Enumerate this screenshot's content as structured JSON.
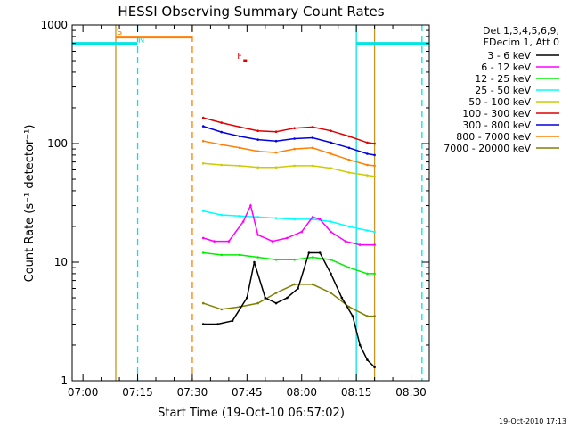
{
  "chart_data": {
    "type": "line",
    "title": "HESSI Observing Summary Count Rates",
    "xlabel": "Start Time (19-Oct-10 06:57:02)",
    "ylabel": "Count Rate (s⁻¹ detector⁻¹)",
    "y_scale": "log",
    "ylim": [
      1,
      1000
    ],
    "xlim": [
      "06:57:02",
      "08:35:00"
    ],
    "x_ticks": [
      "07:00",
      "07:15",
      "07:30",
      "07:45",
      "08:00",
      "08:15",
      "08:30"
    ],
    "y_ticks": [
      "1",
      "10",
      "100",
      "1000"
    ],
    "legend_header": [
      "Det 1,3,4,5,6,9,",
      "FDecim 1, Att 0"
    ],
    "legend_position": "right",
    "footer_timestamp": "19-Oct-2010 17:13",
    "colors": {
      "orbit_line": "#00e5e5",
      "saa_line": "#c8961e",
      "flag_line": "#ff7f00",
      "flare_flag": "#e00000"
    },
    "series": [
      {
        "name": "3 - 6 keV",
        "color": "#000000",
        "x": [
          "07:33",
          "07:37",
          "07:41",
          "07:45",
          "07:47",
          "07:50",
          "07:53",
          "07:56",
          "07:59",
          "08:02",
          "08:05",
          "08:08",
          "08:11",
          "08:14",
          "08:16",
          "08:18",
          "08:20"
        ],
        "y": [
          3,
          3,
          3.2,
          5,
          10,
          5,
          4.5,
          5,
          6,
          12,
          12,
          8,
          5,
          3.5,
          2,
          1.5,
          1.3
        ]
      },
      {
        "name": "6 - 12 keV",
        "color": "#ff00ff",
        "x": [
          "07:33",
          "07:36",
          "07:40",
          "07:44",
          "07:46",
          "07:48",
          "07:52",
          "07:56",
          "08:00",
          "08:03",
          "08:05",
          "08:08",
          "08:12",
          "08:16",
          "08:20"
        ],
        "y": [
          16,
          15,
          15,
          22,
          30,
          17,
          15,
          16,
          18,
          24,
          23,
          18,
          15,
          14,
          14
        ]
      },
      {
        "name": "12 - 25 keV",
        "color": "#00ee00",
        "x": [
          "07:33",
          "07:38",
          "07:43",
          "07:48",
          "07:53",
          "07:58",
          "08:03",
          "08:08",
          "08:13",
          "08:18",
          "08:20"
        ],
        "y": [
          12,
          11.5,
          11.5,
          11,
          10.5,
          10.5,
          11,
          10.5,
          9,
          8,
          8
        ]
      },
      {
        "name": "25 - 50 keV",
        "color": "#00ffff",
        "x": [
          "07:33",
          "07:38",
          "07:43",
          "07:48",
          "07:53",
          "07:58",
          "08:03",
          "08:08",
          "08:13",
          "08:18",
          "08:20"
        ],
        "y": [
          27,
          25,
          24.5,
          24,
          23.5,
          23,
          23,
          22,
          20,
          18.5,
          18
        ]
      },
      {
        "name": "50 - 100 keV",
        "color": "#cccc00",
        "x": [
          "07:33",
          "07:38",
          "07:43",
          "07:48",
          "07:53",
          "07:58",
          "08:03",
          "08:08",
          "08:13",
          "08:18",
          "08:20"
        ],
        "y": [
          68,
          66,
          65,
          63,
          63,
          65,
          65,
          62,
          57,
          54,
          53
        ]
      },
      {
        "name": "100 - 300 keV",
        "color": "#e00000",
        "x": [
          "07:33",
          "07:38",
          "07:43",
          "07:48",
          "07:53",
          "07:58",
          "08:03",
          "08:08",
          "08:13",
          "08:18",
          "08:20"
        ],
        "y": [
          165,
          150,
          138,
          128,
          126,
          135,
          138,
          128,
          115,
          102,
          100
        ]
      },
      {
        "name": "300 - 800 keV",
        "color": "#0000e0",
        "x": [
          "07:33",
          "07:38",
          "07:43",
          "07:48",
          "07:53",
          "07:58",
          "08:03",
          "08:08",
          "08:13",
          "08:18",
          "08:20"
        ],
        "y": [
          140,
          125,
          115,
          108,
          105,
          110,
          112,
          102,
          92,
          82,
          80
        ]
      },
      {
        "name": "800 - 7000 keV",
        "color": "#ff7f00",
        "x": [
          "07:33",
          "07:38",
          "07:43",
          "07:48",
          "07:53",
          "07:58",
          "08:03",
          "08:08",
          "08:13",
          "08:18",
          "08:20"
        ],
        "y": [
          105,
          98,
          92,
          86,
          84,
          90,
          92,
          82,
          73,
          66,
          65
        ]
      },
      {
        "name": "7000 - 20000 keV",
        "color": "#808000",
        "x": [
          "07:33",
          "07:38",
          "07:43",
          "07:48",
          "07:53",
          "07:58",
          "08:03",
          "08:08",
          "08:13",
          "08:18",
          "08:20"
        ],
        "y": [
          4.5,
          4,
          4.2,
          4.5,
          5.5,
          6.5,
          6.5,
          5.5,
          4.2,
          3.5,
          3.5
        ]
      }
    ],
    "annotations": [
      {
        "text": "S",
        "x": "07:10",
        "y": 830,
        "color": "#ff7f00"
      },
      {
        "text": "N",
        "x": "07:16",
        "y": 710,
        "color": "#00e5e5"
      },
      {
        "text": "F",
        "x": "07:43",
        "y": 520,
        "color": "#e00000"
      }
    ],
    "vertical_markers": [
      {
        "x": "07:09",
        "color": "#c8961e",
        "style": "solid"
      },
      {
        "x": "07:15",
        "color": "#00e5e5",
        "style": "dashed"
      },
      {
        "x": "07:30",
        "color": "#ff7f00",
        "style": "dashed"
      },
      {
        "x": "08:15",
        "color": "#00e5e5",
        "style": "solid"
      },
      {
        "x": "08:20",
        "color": "#c8961e",
        "style": "solid"
      },
      {
        "x": "08:33",
        "color": "#00e5e5",
        "style": "dashed"
      }
    ],
    "flag_bars": [
      {
        "x_start": "06:57:02",
        "x_end": "07:15",
        "y": 700,
        "color": "#00e5e5"
      },
      {
        "x_start": "07:09",
        "x_end": "07:30",
        "y": 790,
        "color": "#ff7f00"
      },
      {
        "x_start": "07:44",
        "x_end": "07:45",
        "y": 500,
        "color": "#e00000"
      },
      {
        "x_start": "08:15",
        "x_end": "08:35",
        "y": 700,
        "color": "#00e5e5"
      }
    ]
  }
}
